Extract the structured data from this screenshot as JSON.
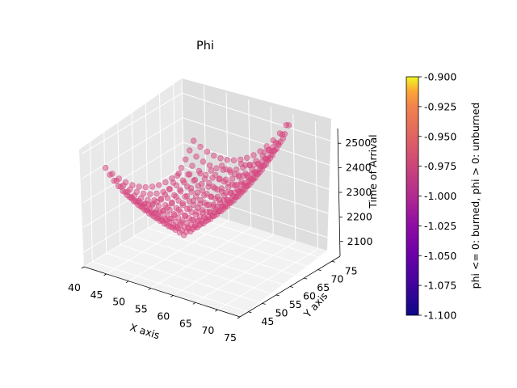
{
  "chart_data": {
    "type": "scatter",
    "projection": "3d",
    "title": "Phi",
    "xlabel": "X axis",
    "ylabel": "Y axis",
    "zlabel": "Time of Arrival",
    "xlim": [
      40,
      75
    ],
    "ylim": [
      42,
      78
    ],
    "zlim": [
      2040,
      2560
    ],
    "x_ticks": [
      "40",
      "45",
      "50",
      "55",
      "60",
      "65",
      "70",
      "75"
    ],
    "y_ticks": [
      "45",
      "50",
      "55",
      "60",
      "65",
      "70",
      "75"
    ],
    "z_ticks": [
      "2100",
      "2200",
      "2300",
      "2400",
      "2500"
    ],
    "grid": true,
    "point_color": "#d6467f",
    "point_alpha": 0.5,
    "series": [
      {
        "phi_value": -1.0,
        "description_grid": {
          "x_range": [
            44,
            72
          ],
          "y_range": [
            44,
            76
          ],
          "x_step": 1.5,
          "y_step": 1.5,
          "surface": "time of arrival minimum near x=50, y=62; rises toward corners up to ~2550"
        }
      }
    ],
    "colorbar": {
      "label": "phi <= 0: burned, phi > 0: unburned",
      "cmap": "plasma",
      "range": [
        -1.1,
        -0.9
      ],
      "ticks": [
        "-0.900",
        "-0.925",
        "-0.950",
        "-0.975",
        "-1.000",
        "-1.025",
        "-1.050",
        "-1.075",
        "-1.100"
      ],
      "tick_values": [
        -0.9,
        -0.925,
        -0.95,
        -0.975,
        -1.0,
        -1.025,
        -1.05,
        -1.075,
        -1.1
      ]
    }
  }
}
